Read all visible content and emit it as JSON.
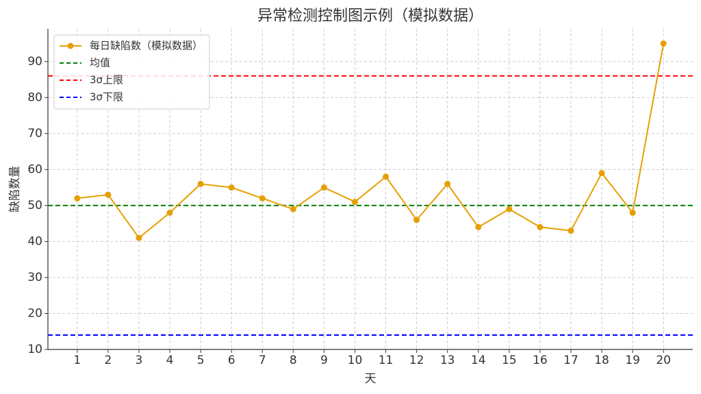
{
  "chart_data": {
    "type": "line",
    "title": "异常检测控制图示例（模拟数据）",
    "x_label": "天",
    "y_label": "缺陷数量",
    "x": [
      1,
      2,
      3,
      4,
      5,
      6,
      7,
      8,
      9,
      10,
      11,
      12,
      13,
      14,
      15,
      16,
      17,
      18,
      19,
      20
    ],
    "series": [
      {
        "name": "每日缺陷数（模拟数据）",
        "color": "#e69f00",
        "values": [
          52,
          53,
          41,
          48,
          56,
          55,
          52,
          49,
          55,
          51,
          58,
          46,
          56,
          44,
          49,
          44,
          43,
          59,
          48,
          95
        ]
      }
    ],
    "hlines": [
      {
        "name": "均值",
        "color": "#008000",
        "value": 50
      },
      {
        "name": "3σ上限",
        "color": "#ff0000",
        "value": 86
      },
      {
        "name": "3σ下限",
        "color": "#0000ff",
        "value": 14
      }
    ],
    "xlim": [
      0.05,
      20.95
    ],
    "xticks": [
      1,
      2,
      3,
      4,
      5,
      6,
      7,
      8,
      9,
      10,
      11,
      12,
      13,
      14,
      15,
      16,
      17,
      18,
      19,
      20
    ],
    "ylim": [
      10,
      99.1
    ],
    "yticks": [
      10,
      20,
      30,
      40,
      50,
      60,
      70,
      80,
      90
    ],
    "grid": true,
    "legend": "upper left"
  }
}
